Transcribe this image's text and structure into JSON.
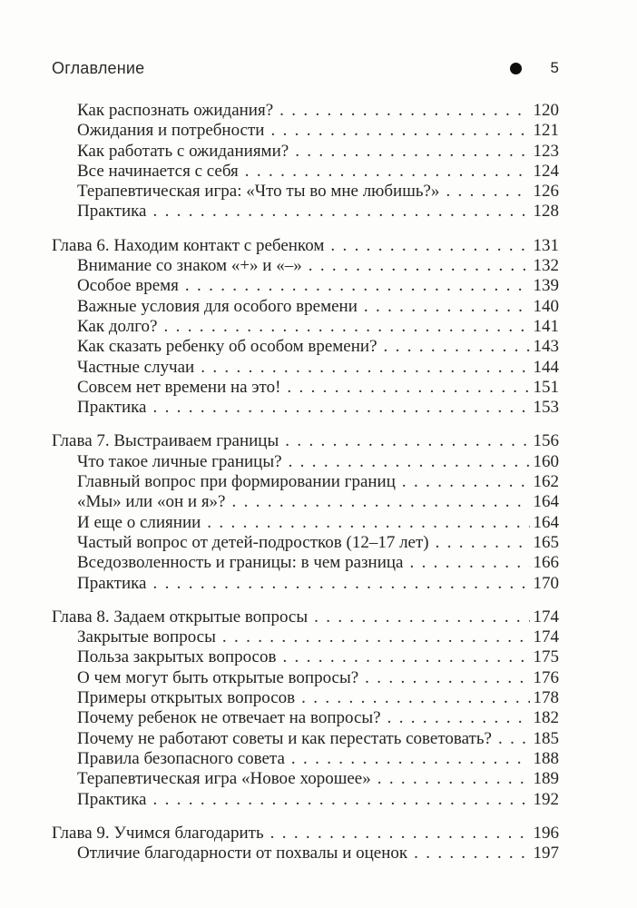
{
  "header": {
    "title": "Оглавление",
    "page_number": "5",
    "bullet_icon": "●"
  },
  "toc": {
    "sections": [
      {
        "chapter": null,
        "entries": [
          {
            "title": "Как распознать ожидания?",
            "page": "120"
          },
          {
            "title": "Ожидания и потребности",
            "page": "121"
          },
          {
            "title": "Как работать с ожиданиями?",
            "page": "123"
          },
          {
            "title": "Все начинается с себя",
            "page": "124"
          },
          {
            "title": "Терапевтическая игра: «Что ты во мне любишь?»",
            "page": "126"
          },
          {
            "title": "Практика",
            "page": "128"
          }
        ]
      },
      {
        "chapter": {
          "title": "Глава 6. Находим контакт с ребенком",
          "page": "131"
        },
        "entries": [
          {
            "title": "Внимание со знаком «+» и «–»",
            "page": "132"
          },
          {
            "title": "Особое время",
            "page": "139"
          },
          {
            "title": "Важные условия для особого времени",
            "page": "140"
          },
          {
            "title": "Как долго?",
            "page": "141"
          },
          {
            "title": "Как сказать ребенку об особом времени?",
            "page": "143"
          },
          {
            "title": "Частные случаи",
            "page": "144"
          },
          {
            "title": "Совсем нет времени на это!",
            "page": "151"
          },
          {
            "title": "Практика",
            "page": "153"
          }
        ]
      },
      {
        "chapter": {
          "title": "Глава 7. Выстраиваем границы",
          "page": "156"
        },
        "entries": [
          {
            "title": "Что такое личные границы?",
            "page": "160"
          },
          {
            "title": "Главный вопрос при формировании границ",
            "page": "162"
          },
          {
            "title": "«Мы» или «он и я»?",
            "page": "164"
          },
          {
            "title": "И еще о слиянии",
            "page": "164"
          },
          {
            "title": "Частый вопрос от детей-подростков (12–17 лет)",
            "page": "165"
          },
          {
            "title": "Вседозволенность и границы: в чем разница",
            "page": "166"
          },
          {
            "title": "Практика",
            "page": "170"
          }
        ]
      },
      {
        "chapter": {
          "title": "Глава 8. Задаем открытые вопросы",
          "page": "174"
        },
        "entries": [
          {
            "title": "Закрытые вопросы",
            "page": "174"
          },
          {
            "title": "Польза закрытых вопросов",
            "page": "175"
          },
          {
            "title": "О чем могут быть открытые вопросы?",
            "page": "176"
          },
          {
            "title": "Примеры открытых вопросов",
            "page": "178"
          },
          {
            "title": "Почему ребенок не отвечает на вопросы?",
            "page": "182"
          },
          {
            "title": "Почему не работают советы и как перестать советовать?",
            "page": "185"
          },
          {
            "title": "Правила безопасного совета",
            "page": "188"
          },
          {
            "title": "Терапевтическая игра «Новое хорошее»",
            "page": "189"
          },
          {
            "title": "Практика",
            "page": "192"
          }
        ]
      },
      {
        "chapter": {
          "title": "Глава 9. Учимся благодарить",
          "page": "196"
        },
        "entries": [
          {
            "title": "Отличие благодарности от похвалы и оценок",
            "page": "197"
          }
        ]
      }
    ]
  }
}
